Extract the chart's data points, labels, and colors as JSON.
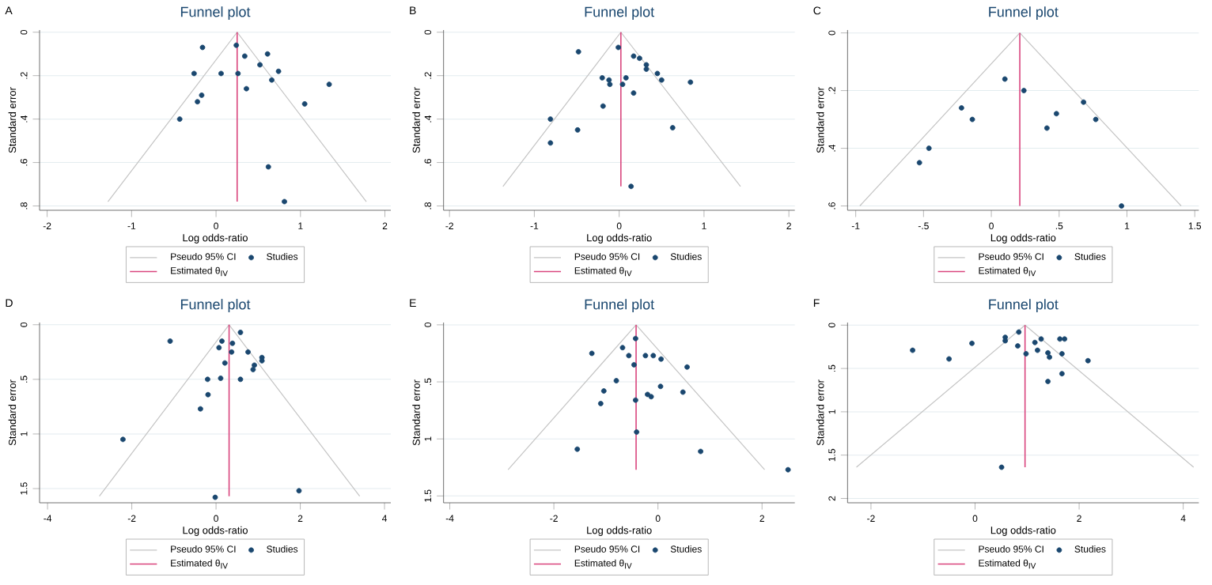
{
  "chart_data": [
    {
      "type": "scatter",
      "title": "Funnel plot",
      "xlabel": "Log odds-ratio",
      "ylabel": "Standard error",
      "annotations": [
        "A"
      ],
      "legend": "bottom",
      "grid": "y",
      "xlim": [
        -2.09,
        2.07
      ],
      "ylim": [
        0.82,
        -0.01
      ],
      "xticks": [
        -2,
        -1,
        0,
        1,
        2
      ],
      "yticks": [
        0,
        {
          "value": 0.2,
          "label": ".2"
        },
        {
          "value": 0.4,
          "label": ".4"
        },
        {
          "value": 0.6,
          "label": ".6"
        },
        {
          "value": 0.8,
          "label": ".8"
        }
      ],
      "ref_lines": [
        {
          "axis": "x",
          "value": 0.25,
          "label": "Estimated θ$_{IV}$",
          "color": "#d9457e"
        }
      ],
      "series": [
        {
          "name": "Pseudo 95% CI",
          "type": "line",
          "color": "#c4c4c4",
          "marker": "none",
          "x": [
            -1.28,
            0.25,
            1.78
          ],
          "values": [
            0.78,
            0,
            0.78
          ]
        },
        {
          "name": "Studies",
          "type": "scatter",
          "marker": "circle",
          "color": "#1a476f",
          "x": [
            0.24,
            -0.16,
            0.61,
            0.34,
            0.52,
            0.74,
            -0.26,
            0.06,
            0.26,
            0.66,
            1.34,
            0.36,
            -0.17,
            -0.22,
            1.05,
            -0.43,
            0.62,
            0.81
          ],
          "values": [
            0.06,
            0.07,
            0.1,
            0.11,
            0.15,
            0.18,
            0.19,
            0.19,
            0.19,
            0.22,
            0.24,
            0.26,
            0.29,
            0.32,
            0.33,
            0.4,
            0.62,
            0.78
          ]
        }
      ]
    },
    {
      "type": "scatter",
      "title": "Funnel plot",
      "xlabel": "Log odds-ratio",
      "ylabel": "Standard error",
      "annotations": [
        "B"
      ],
      "legend": "bottom",
      "grid": "y",
      "xlim": [
        -2.07,
        2.07
      ],
      "ylim": [
        0.82,
        -0.01
      ],
      "xticks": [
        -2,
        -1,
        0,
        1,
        2
      ],
      "yticks": [
        0,
        {
          "value": 0.2,
          "label": ".2"
        },
        {
          "value": 0.4,
          "label": ".4"
        },
        {
          "value": 0.6,
          "label": ".6"
        },
        {
          "value": 0.8,
          "label": ".8"
        }
      ],
      "ref_lines": [
        {
          "axis": "x",
          "value": 0.02,
          "label": "Estimated θ$_{IV}$",
          "color": "#d9457e"
        }
      ],
      "series": [
        {
          "name": "Pseudo 95% CI",
          "type": "line",
          "color": "#c4c4c4",
          "marker": "none",
          "x": [
            -1.37,
            0.02,
            1.43
          ],
          "values": [
            0.71,
            0,
            0.71
          ]
        },
        {
          "name": "Studies",
          "type": "scatter",
          "marker": "circle",
          "color": "#1a476f",
          "x": [
            -0.01,
            -0.48,
            0.17,
            0.24,
            0.32,
            0.32,
            0.45,
            -0.2,
            0.08,
            -0.12,
            0.5,
            0.84,
            -0.11,
            0.04,
            0.17,
            -0.19,
            -0.81,
            0.63,
            -0.49,
            -0.81,
            0.14
          ],
          "values": [
            0.07,
            0.09,
            0.11,
            0.12,
            0.15,
            0.17,
            0.19,
            0.21,
            0.21,
            0.22,
            0.22,
            0.23,
            0.24,
            0.24,
            0.28,
            0.34,
            0.4,
            0.44,
            0.45,
            0.51,
            0.71
          ]
        }
      ]
    },
    {
      "type": "scatter",
      "title": "Funnel plot",
      "xlabel": "Log odds-ratio",
      "ylabel": "Standard error",
      "annotations": [
        "C"
      ],
      "legend": "bottom",
      "grid": "y",
      "xlim": [
        -1.06,
        1.53
      ],
      "ylim": [
        0.615,
        -0.01
      ],
      "xticks": [
        -1,
        {
          "value": -0.5,
          "label": "-.5"
        },
        0,
        {
          "value": 0.5,
          "label": ".5"
        },
        1,
        1.5
      ],
      "yticks": [
        0,
        {
          "value": 0.2,
          "label": ".2"
        },
        {
          "value": 0.4,
          "label": ".4"
        },
        {
          "value": 0.6,
          "label": ".6"
        }
      ],
      "ref_lines": [
        {
          "axis": "x",
          "value": 0.21,
          "label": "Estimated θ$_{IV}$",
          "color": "#d9457e"
        }
      ],
      "series": [
        {
          "name": "Pseudo 95% CI",
          "type": "line",
          "color": "#c4c4c4",
          "marker": "none",
          "x": [
            -0.97,
            0.21,
            1.4
          ],
          "values": [
            0.6,
            0,
            0.6
          ]
        },
        {
          "name": "Studies",
          "type": "scatter",
          "marker": "circle",
          "color": "#1a476f",
          "x": [
            0.1,
            0.24,
            -0.22,
            0.68,
            0.48,
            -0.14,
            0.77,
            0.41,
            -0.46,
            -0.53,
            0.96
          ],
          "values": [
            0.16,
            0.2,
            0.26,
            0.24,
            0.28,
            0.3,
            0.3,
            0.33,
            0.4,
            0.45,
            0.6
          ]
        }
      ]
    },
    {
      "type": "scatter",
      "title": "Funnel plot",
      "xlabel": "Log odds-ratio",
      "ylabel": "Standard error",
      "annotations": [
        "D"
      ],
      "legend": "bottom",
      "grid": "y",
      "xlim": [
        -4.19,
        4.15
      ],
      "ylim": [
        1.63,
        -0.02
      ],
      "xticks": [
        -4,
        -2,
        0,
        2,
        4
      ],
      "yticks": [
        0,
        {
          "value": 0.5,
          "label": ".5"
        },
        1,
        1.5
      ],
      "ref_lines": [
        {
          "axis": "x",
          "value": 0.31,
          "label": "Estimated θ$_{IV}$",
          "color": "#d9457e"
        }
      ],
      "series": [
        {
          "name": "Pseudo 95% CI",
          "type": "line",
          "color": "#c4c4c4",
          "marker": "none",
          "x": [
            -2.77,
            0.31,
            3.41
          ],
          "values": [
            1.57,
            0,
            1.57
          ]
        },
        {
          "name": "Studies",
          "type": "scatter",
          "marker": "circle",
          "color": "#1a476f",
          "x": [
            0.58,
            -1.09,
            0.14,
            0.39,
            0.07,
            0.37,
            0.76,
            1.09,
            1.09,
            0.21,
            0.91,
            0.88,
            -0.2,
            0.11,
            0.58,
            -0.19,
            -0.37,
            -2.21,
            1.97,
            -0.02
          ],
          "values": [
            0.07,
            0.15,
            0.15,
            0.17,
            0.21,
            0.25,
            0.25,
            0.3,
            0.33,
            0.35,
            0.37,
            0.41,
            0.5,
            0.49,
            0.5,
            0.64,
            0.77,
            1.05,
            1.52,
            1.58
          ]
        }
      ]
    },
    {
      "type": "scatter",
      "title": "Funnel plot",
      "xlabel": "Log odds-ratio",
      "ylabel": "Standard error",
      "annotations": [
        "E"
      ],
      "legend": "bottom",
      "grid": "y",
      "xlim": [
        -4.12,
        2.63
      ],
      "ylim": [
        1.56,
        -0.02
      ],
      "xticks": [
        -4,
        -2,
        0,
        2
      ],
      "yticks": [
        0,
        {
          "value": 0.5,
          "label": ".5"
        },
        1,
        1.5
      ],
      "ref_lines": [
        {
          "axis": "x",
          "value": -0.42,
          "label": "Estimated θ$_{IV}$",
          "color": "#d9457e"
        }
      ],
      "series": [
        {
          "name": "Pseudo 95% CI",
          "type": "line",
          "color": "#c4c4c4",
          "marker": "none",
          "x": [
            -2.88,
            -0.42,
            2.05
          ],
          "values": [
            1.27,
            0,
            1.27
          ]
        },
        {
          "name": "Studies",
          "type": "scatter",
          "marker": "circle",
          "color": "#1a476f",
          "x": [
            -0.43,
            -0.68,
            -1.27,
            -0.56,
            -0.24,
            -0.09,
            0.06,
            -0.46,
            0.56,
            -0.8,
            0.05,
            -1.04,
            0.48,
            -0.2,
            -0.13,
            -0.43,
            -1.1,
            -0.41,
            -1.55,
            0.82,
            2.5
          ],
          "values": [
            0.12,
            0.2,
            0.25,
            0.27,
            0.27,
            0.27,
            0.3,
            0.35,
            0.37,
            0.49,
            0.54,
            0.58,
            0.59,
            0.61,
            0.63,
            0.66,
            0.69,
            0.94,
            1.09,
            1.11,
            1.27
          ]
        }
      ]
    },
    {
      "type": "scatter",
      "title": "Funnel plot",
      "xlabel": "Log odds-ratio",
      "ylabel": "Standard error",
      "annotations": [
        "F"
      ],
      "legend": "bottom",
      "grid": "y",
      "xlim": [
        -2.45,
        4.3
      ],
      "ylim": [
        2.05,
        -0.03
      ],
      "xticks": [
        -2,
        0,
        2,
        4
      ],
      "yticks": [
        0,
        {
          "value": 0.5,
          "label": ".5"
        },
        1,
        1.5,
        2
      ],
      "ref_lines": [
        {
          "axis": "x",
          "value": 0.96,
          "label": "Estimated θ$_{IV}$",
          "color": "#d9457e"
        }
      ],
      "series": [
        {
          "name": "Pseudo 95% CI",
          "type": "line",
          "color": "#c4c4c4",
          "marker": "none",
          "x": [
            -2.28,
            0.96,
            4.2
          ],
          "values": [
            1.64,
            0,
            1.64
          ]
        },
        {
          "name": "Studies",
          "type": "scatter",
          "marker": "circle",
          "color": "#1a476f",
          "x": [
            0.84,
            0.58,
            0.58,
            -0.06,
            -1.2,
            -0.5,
            0.82,
            1.15,
            1.2,
            1.27,
            0.98,
            1.4,
            1.43,
            1.63,
            1.72,
            1.67,
            2.17,
            1.67,
            1.4,
            0.51
          ],
          "values": [
            0.08,
            0.14,
            0.18,
            0.21,
            0.29,
            0.39,
            0.24,
            0.2,
            0.29,
            0.16,
            0.33,
            0.32,
            0.37,
            0.16,
            0.16,
            0.33,
            0.41,
            0.56,
            0.65,
            1.64
          ]
        }
      ]
    }
  ]
}
